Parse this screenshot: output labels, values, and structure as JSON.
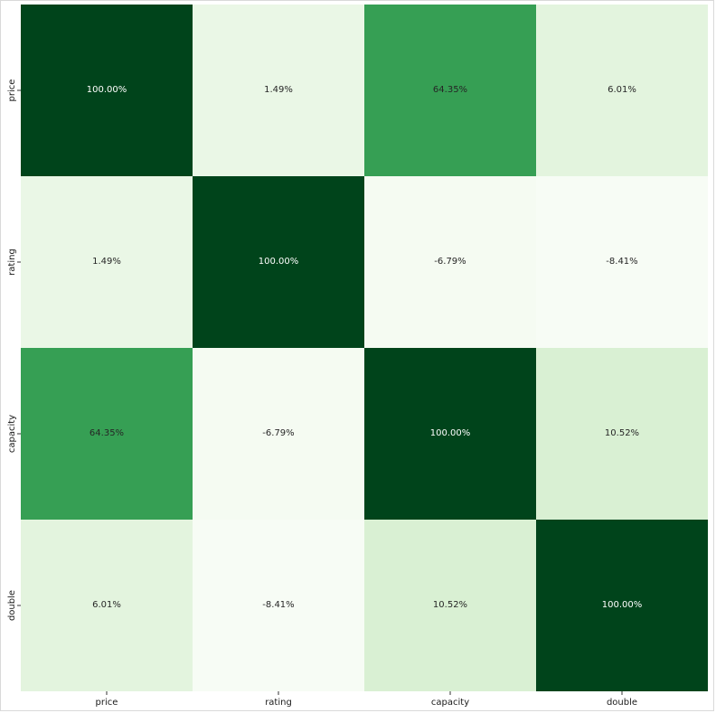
{
  "chart_data": {
    "type": "heatmap",
    "title": "",
    "xlabel": "",
    "ylabel": "",
    "x_labels": [
      "price",
      "rating",
      "capacity",
      "double"
    ],
    "y_labels": [
      "price",
      "rating",
      "capacity",
      "double"
    ],
    "values": [
      [
        100.0,
        1.49,
        64.35,
        6.01
      ],
      [
        1.49,
        100.0,
        -6.79,
        -8.41
      ],
      [
        64.35,
        -6.79,
        100.0,
        10.52
      ],
      [
        6.01,
        -8.41,
        10.52,
        100.0
      ]
    ],
    "annotations": [
      [
        "100.00%",
        "1.49%",
        "64.35%",
        "6.01%"
      ],
      [
        "1.49%",
        "100.00%",
        "-6.79%",
        "-8.41%"
      ],
      [
        "64.35%",
        "-6.79%",
        "100.00%",
        "10.52%"
      ],
      [
        "6.01%",
        "-8.41%",
        "10.52%",
        "100.00%"
      ]
    ],
    "value_range": [
      -8.41,
      100.0
    ],
    "colormap": "Greens",
    "colorbar": false
  }
}
